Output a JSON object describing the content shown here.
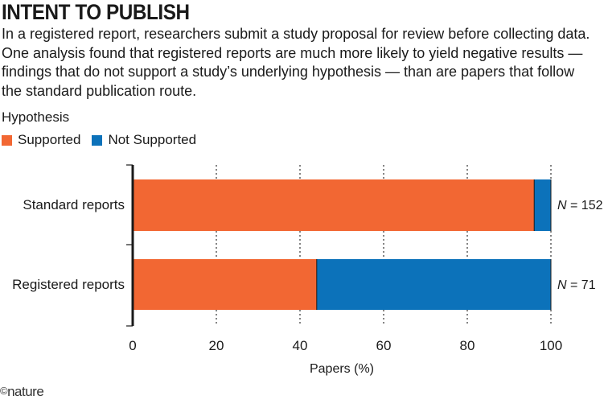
{
  "title": "INTENT TO PUBLISH",
  "subtitle": "In a registered report, researchers submit a study proposal for review before collecting data. One analysis found that registered reports are much more likely to yield negative results — findings that do not support a study’s underlying hypothesis — than are papers that follow the standard publication route.",
  "logo": {
    "symbol": "©",
    "text": "nature"
  },
  "chart_data": {
    "type": "bar",
    "orientation": "horizontal",
    "stacked": true,
    "categories": [
      "Standard reports",
      "Registered reports"
    ],
    "series": [
      {
        "name": "Supported",
        "color": "#f26733",
        "values": [
          96,
          44
        ]
      },
      {
        "name": "Not Supported",
        "color": "#0c72ba",
        "values": [
          4,
          56
        ]
      }
    ],
    "n_labels": [
      {
        "prefix": "N",
        "value": "= 152"
      },
      {
        "prefix": "N",
        "value": "= 71"
      }
    ],
    "xlabel": "Papers (%)",
    "legend_title": "Hypothesis",
    "legend_position": "top-left",
    "xlim": [
      0,
      100
    ],
    "xticks": [
      0,
      20,
      40,
      60,
      80,
      100
    ],
    "grid": "dotted vertical"
  }
}
